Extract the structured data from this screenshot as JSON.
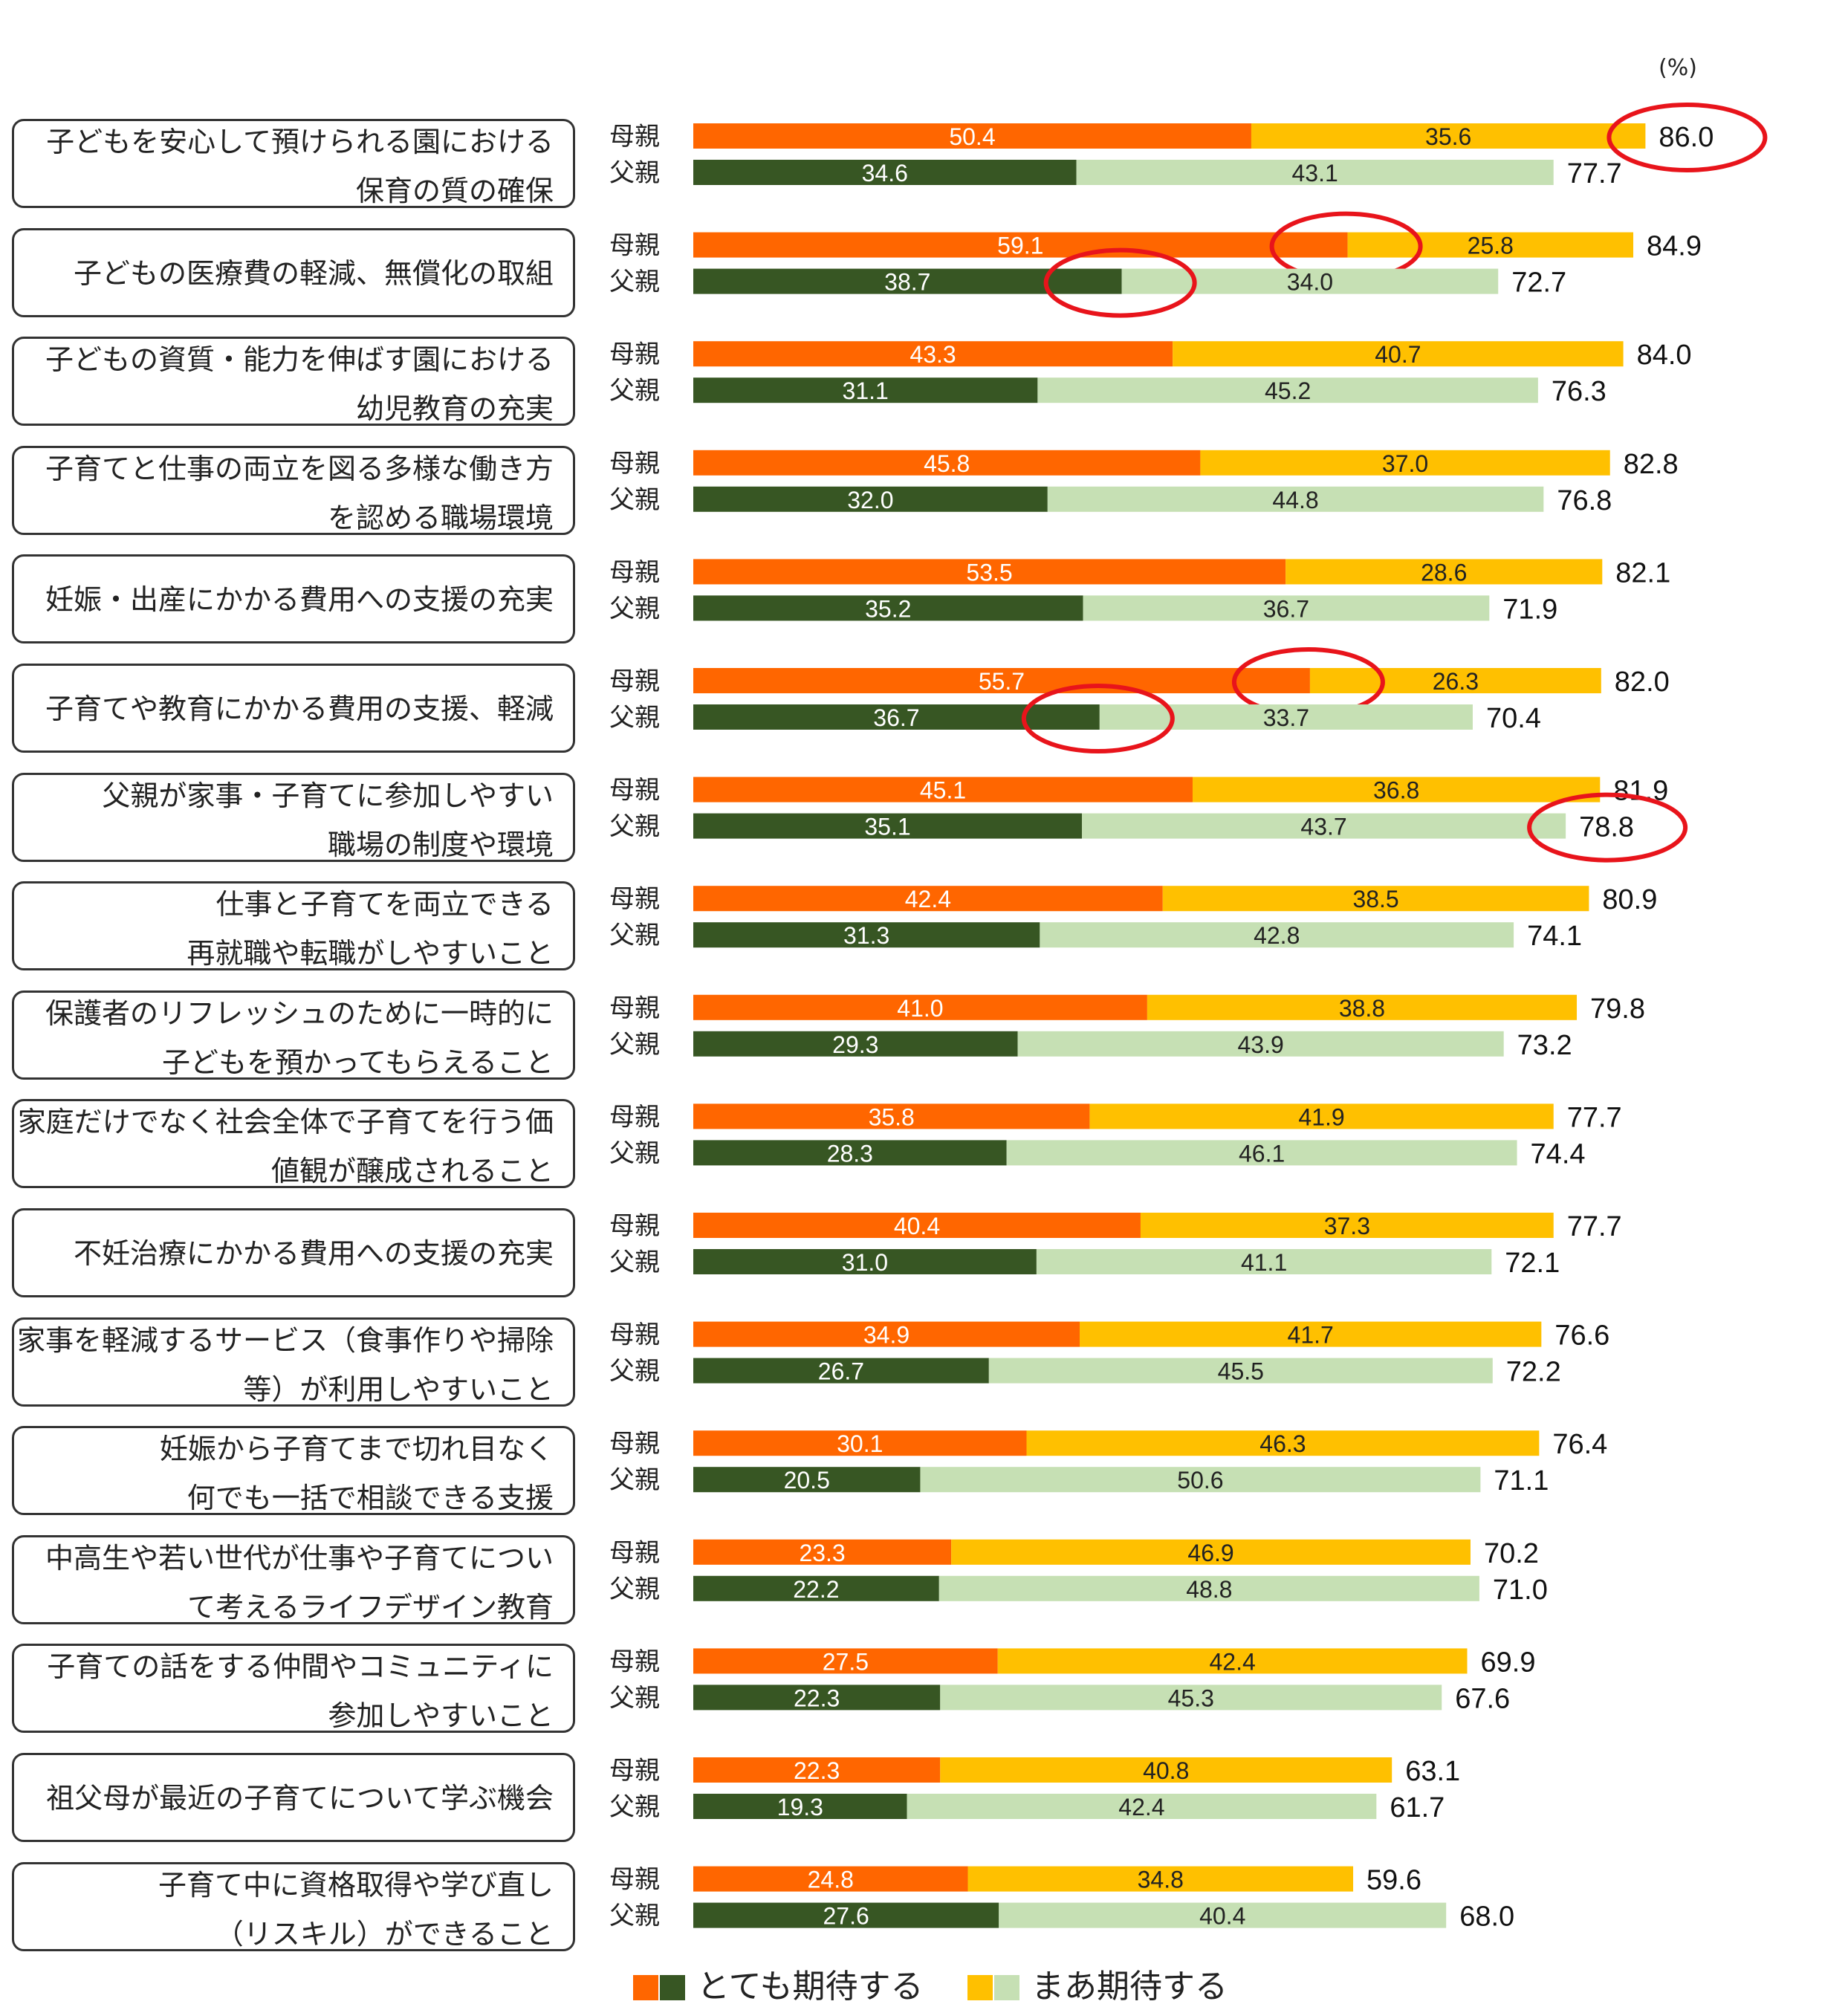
{
  "unit_label": "(%)",
  "chart_data": {
    "type": "bar",
    "orientation": "horizontal",
    "stacked": true,
    "row_labels": [
      "母親",
      "父親"
    ],
    "legend": [
      {
        "label": "とても期待する",
        "colors": [
          "#FF6600",
          "#375623"
        ]
      },
      {
        "label": "まあ期待する",
        "colors": [
          "#FFC000",
          "#C6E0B4"
        ]
      }
    ],
    "colors": {
      "mother_very": "#FF6600",
      "mother_some": "#FFC000",
      "father_very": "#375623",
      "father_some": "#C6E0B4",
      "highlight": "#E8141B"
    },
    "categories": [
      {
        "lines": [
          "子どもを安心して預けられる園における",
          "保育の質の確保"
        ],
        "mother": [
          50.4,
          35.6,
          86.0
        ],
        "father": [
          34.6,
          43.1,
          77.7
        ]
      },
      {
        "lines": [
          "子どもの医療費の軽減、無償化の取組"
        ],
        "mother": [
          59.1,
          25.8,
          84.9
        ],
        "father": [
          38.7,
          34.0,
          72.7
        ]
      },
      {
        "lines": [
          "子どもの資質・能力を伸ばす園における",
          "幼児教育の充実"
        ],
        "mother": [
          43.3,
          40.7,
          84.0
        ],
        "father": [
          31.1,
          45.2,
          76.3
        ]
      },
      {
        "lines": [
          "子育てと仕事の両立を図る多様な働き方",
          "を認める職場環境"
        ],
        "mother": [
          45.8,
          37.0,
          82.8
        ],
        "father": [
          32.0,
          44.8,
          76.8
        ]
      },
      {
        "lines": [
          "妊娠・出産にかかる費用への支援の充実"
        ],
        "mother": [
          53.5,
          28.6,
          82.1
        ],
        "father": [
          35.2,
          36.7,
          71.9
        ]
      },
      {
        "lines": [
          "子育てや教育にかかる費用の支援、軽減"
        ],
        "mother": [
          55.7,
          26.3,
          82.0
        ],
        "father": [
          36.7,
          33.7,
          70.4
        ]
      },
      {
        "lines": [
          "父親が家事・子育てに参加しやすい",
          "職場の制度や環境"
        ],
        "mother": [
          45.1,
          36.8,
          81.9
        ],
        "father": [
          35.1,
          43.7,
          78.8
        ]
      },
      {
        "lines": [
          "仕事と子育てを両立できる",
          "再就職や転職がしやすいこと"
        ],
        "mother": [
          42.4,
          38.5,
          80.9
        ],
        "father": [
          31.3,
          42.8,
          74.1
        ]
      },
      {
        "lines": [
          "保護者のリフレッシュのために一時的に",
          "子どもを預かってもらえること"
        ],
        "mother": [
          41.0,
          38.8,
          79.8
        ],
        "father": [
          29.3,
          43.9,
          73.2
        ]
      },
      {
        "lines": [
          "家庭だけでなく社会全体で子育てを行う価",
          "値観が醸成されること"
        ],
        "mother": [
          35.8,
          41.9,
          77.7
        ],
        "father": [
          28.3,
          46.1,
          74.4
        ]
      },
      {
        "lines": [
          "不妊治療にかかる費用への支援の充実"
        ],
        "mother": [
          40.4,
          37.3,
          77.7
        ],
        "father": [
          31.0,
          41.1,
          72.1
        ]
      },
      {
        "lines": [
          "家事を軽減するサービス（食事作りや掃除",
          "等）が利用しやすいこと"
        ],
        "mother": [
          34.9,
          41.7,
          76.6
        ],
        "father": [
          26.7,
          45.5,
          72.2
        ]
      },
      {
        "lines": [
          "妊娠から子育てまで切れ目なく",
          "何でも一括で相談できる支援"
        ],
        "mother": [
          30.1,
          46.3,
          76.4
        ],
        "father": [
          20.5,
          50.6,
          71.1
        ]
      },
      {
        "lines": [
          "中高生や若い世代が仕事や子育てについ",
          "て考えるライフデザイン教育"
        ],
        "mother": [
          23.3,
          46.9,
          70.2
        ],
        "father": [
          22.2,
          48.8,
          71.0
        ]
      },
      {
        "lines": [
          "子育ての話をする仲間やコミュニティに",
          "参加しやすいこと"
        ],
        "mother": [
          27.5,
          42.4,
          69.9
        ],
        "father": [
          22.3,
          45.3,
          67.6
        ]
      },
      {
        "lines": [
          "祖父母が最近の子育てについて学ぶ機会"
        ],
        "mother": [
          22.3,
          40.8,
          63.1
        ],
        "father": [
          19.3,
          42.4,
          61.7
        ]
      },
      {
        "lines": [
          "子育て中に資格取得や学び直し",
          "（リスキル）ができること"
        ],
        "mother": [
          24.8,
          34.8,
          59.6
        ],
        "father": [
          27.6,
          40.4,
          68.0
        ]
      }
    ],
    "highlighted": [
      {
        "category": 0,
        "row": "mother",
        "value": "total"
      },
      {
        "category": 1,
        "row": "mother",
        "value": "very"
      },
      {
        "category": 1,
        "row": "father",
        "value": "very"
      },
      {
        "category": 5,
        "row": "mother",
        "value": "very"
      },
      {
        "category": 5,
        "row": "father",
        "value": "very"
      },
      {
        "category": 6,
        "row": "father",
        "value": "total"
      }
    ]
  }
}
